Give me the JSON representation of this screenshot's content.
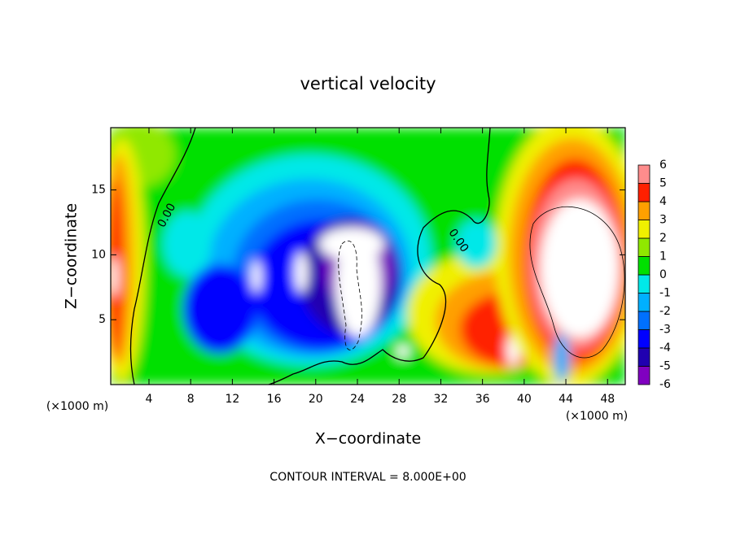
{
  "chart_data": {
    "type": "contour",
    "title": "vertical velocity",
    "x_label": "X−coordinate",
    "y_label": "Z−coordinate",
    "x_unit": "(×1000 m)",
    "x_unit_right": "(×1000 m)",
    "footnote": "CONTOUR INTERVAL = 8.000E+00",
    "contour_labels": [
      "0.00",
      "0.00"
    ],
    "xlim": [
      0.33,
      49.7
    ],
    "xticks": [
      4,
      8,
      12,
      16,
      20,
      24,
      28,
      32,
      36,
      40,
      44,
      48
    ],
    "ylim": [
      0,
      19.8
    ],
    "yticks": [
      5,
      10,
      15
    ],
    "levels": [
      -6,
      -5,
      -4,
      -3,
      -2,
      -1,
      0,
      1,
      2,
      3,
      4,
      5,
      6
    ],
    "colors": [
      "#8000c0",
      "#2000b0",
      "#0000ff",
      "#0070ff",
      "#00b0ff",
      "#00e8e8",
      "#00e000",
      "#90e800",
      "#f0f000",
      "#ffa000",
      "#ff2000",
      "#ff8c8c"
    ],
    "beyond_color": "#ffffff",
    "field_color": "#00e000"
  }
}
